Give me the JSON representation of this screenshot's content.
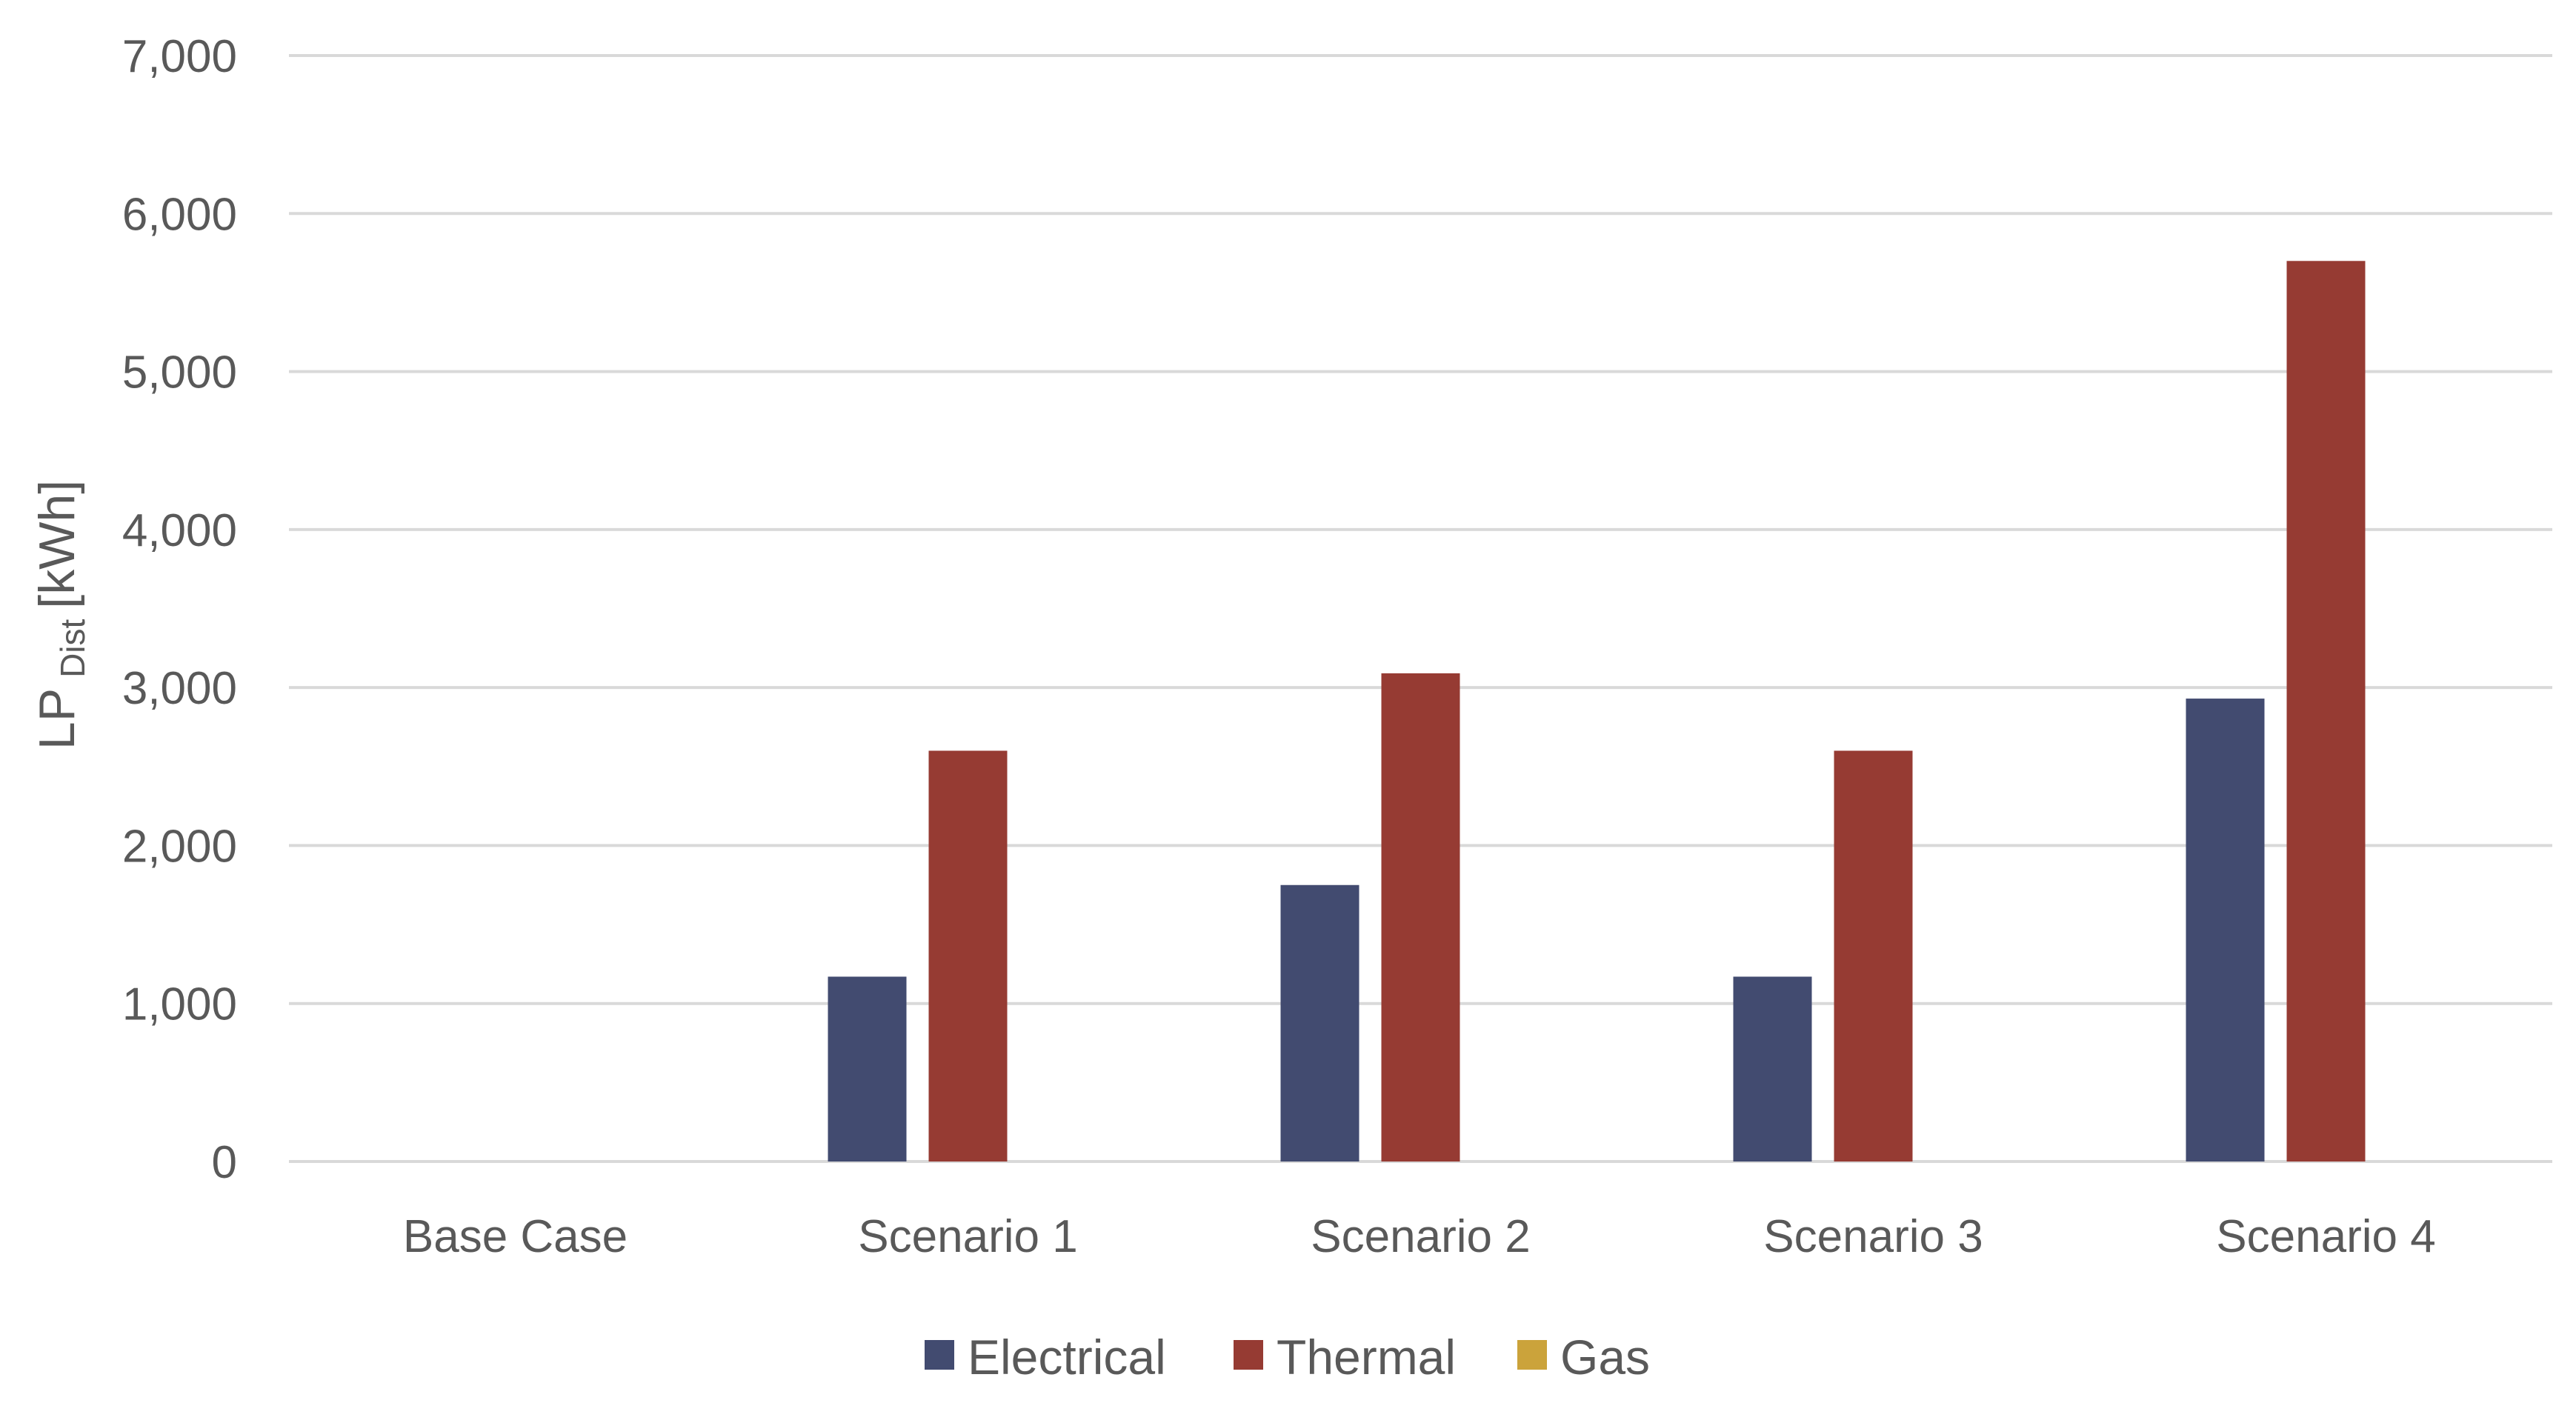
{
  "chart_data": {
    "type": "bar",
    "title": "",
    "xlabel": "",
    "ylabel": {
      "main": "LP",
      "subscript": "Dist",
      "unit": "[kWh]"
    },
    "ylim": [
      0,
      7000
    ],
    "yticks": [
      0,
      1000,
      2000,
      3000,
      4000,
      5000,
      6000,
      7000
    ],
    "ytick_labels": [
      "0",
      "1,000",
      "2,000",
      "3,000",
      "4,000",
      "5,000",
      "6,000",
      "7,000"
    ],
    "grid": true,
    "legend_position": "bottom",
    "categories": [
      "Base Case",
      "Scenario 1",
      "Scenario 2",
      "Scenario 3",
      "Scenario 4"
    ],
    "series": [
      {
        "name": "Electrical",
        "color": "#424b70",
        "values": [
          0,
          1170,
          1750,
          1170,
          2930
        ]
      },
      {
        "name": "Thermal",
        "color": "#963b33",
        "values": [
          0,
          2600,
          3090,
          2600,
          5700
        ]
      },
      {
        "name": "Gas",
        "color": "#cba33b",
        "values": [
          0,
          0,
          0,
          0,
          0
        ]
      }
    ]
  }
}
